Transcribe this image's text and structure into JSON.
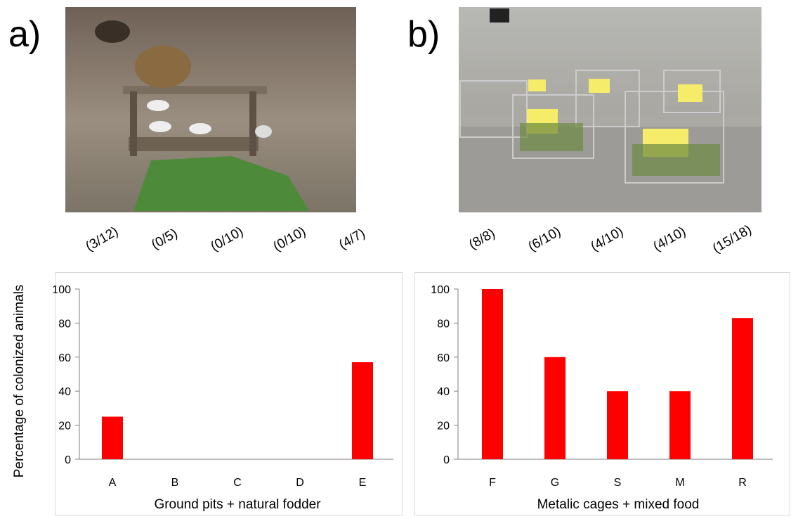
{
  "chart_data": [
    {
      "type": "bar",
      "panel": "a)",
      "ylabel": "Percentage of colonized animals",
      "xlabel": "Ground pits + natural fodder",
      "categories": [
        "A",
        "B",
        "C",
        "D",
        "E"
      ],
      "values": [
        25,
        0,
        0,
        0,
        57
      ],
      "value_labels": [
        "(3/12)",
        "(0/5)",
        "(0/10)",
        "(0/10)",
        "(4/7)"
      ],
      "color": "#ff0000",
      "ylim": [
        0,
        100
      ],
      "yticks": [
        0,
        20,
        40,
        60,
        80,
        100
      ]
    },
    {
      "type": "bar",
      "panel": "b)",
      "xlabel": "Metalic cages + mixed food",
      "categories": [
        "F",
        "G",
        "S",
        "M",
        "R"
      ],
      "values": [
        100,
        60,
        40,
        40,
        83
      ],
      "value_labels": [
        "(8/8)",
        "(6/10)",
        "(4/10)",
        "(4/10)",
        "(15/18)"
      ],
      "color": "#ff0000",
      "ylim": [
        0,
        100
      ],
      "yticks": [
        0,
        20,
        40,
        60,
        80,
        100
      ]
    }
  ]
}
